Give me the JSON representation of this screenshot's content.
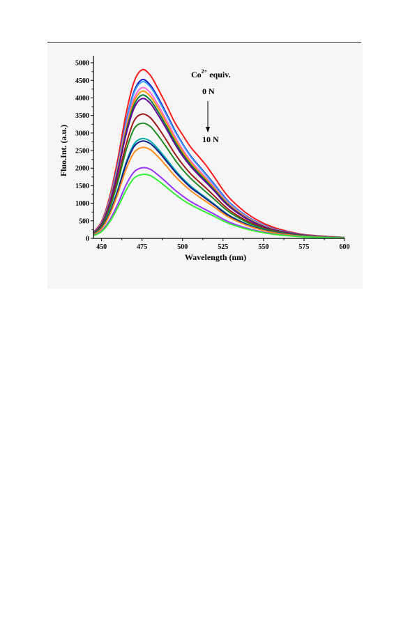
{
  "chart_data": {
    "type": "line",
    "xlabel": "Wavelength (nm)",
    "ylabel": "Fluo.Int. (a.u.)",
    "xlim": [
      445,
      600
    ],
    "ylim": [
      0,
      5200
    ],
    "x_ticks": [
      450,
      475,
      500,
      525,
      550,
      575,
      600
    ],
    "y_ticks": [
      0,
      500,
      1000,
      1500,
      2000,
      2500,
      3000,
      3500,
      4000,
      4500,
      5000
    ],
    "grid": false,
    "annotation": {
      "title_main": "Co",
      "title_sup": "2+",
      "title_rest": " equiv.",
      "start_label": "0 N",
      "end_label": "10 N"
    },
    "x": [
      445,
      450,
      455,
      460,
      465,
      470,
      475,
      480,
      485,
      490,
      495,
      500,
      505,
      510,
      515,
      520,
      525,
      530,
      540,
      550,
      560,
      575,
      600
    ],
    "series": [
      {
        "color": "#ff1a1a",
        "values": [
          180,
          480,
          1180,
          2250,
          3520,
          4450,
          4800,
          4650,
          4250,
          3800,
          3320,
          2950,
          2600,
          2330,
          2050,
          1720,
          1380,
          1100,
          700,
          430,
          260,
          110,
          25
        ]
      },
      {
        "color": "#1414c8",
        "values": [
          170,
          450,
          1110,
          2110,
          3300,
          4180,
          4520,
          4370,
          4000,
          3560,
          3100,
          2700,
          2350,
          2070,
          1800,
          1520,
          1230,
          980,
          620,
          380,
          230,
          100,
          22
        ]
      },
      {
        "color": "#3aa0ff",
        "values": [
          168,
          445,
          1100,
          2090,
          3270,
          4140,
          4460,
          4320,
          3950,
          3520,
          3070,
          2680,
          2330,
          2050,
          1780,
          1500,
          1210,
          970,
          610,
          375,
          225,
          98,
          22
        ]
      },
      {
        "color": "#ff66dd",
        "values": [
          160,
          430,
          1060,
          2010,
          3150,
          3980,
          4290,
          4150,
          3790,
          3370,
          2930,
          2540,
          2210,
          1950,
          1700,
          1440,
          1160,
          930,
          590,
          360,
          215,
          95,
          20
        ]
      },
      {
        "color": "#ff9900",
        "values": [
          155,
          420,
          1040,
          1970,
          3080,
          3890,
          4190,
          4050,
          3700,
          3290,
          2860,
          2480,
          2160,
          1900,
          1660,
          1400,
          1130,
          905,
          575,
          350,
          210,
          92,
          20
        ]
      },
      {
        "color": "#007a3d",
        "values": [
          150,
          410,
          1010,
          1920,
          3000,
          3790,
          4080,
          3940,
          3600,
          3200,
          2780,
          2410,
          2100,
          1850,
          1610,
          1360,
          1100,
          880,
          560,
          340,
          205,
          90,
          19
        ]
      },
      {
        "color": "#660099",
        "values": [
          148,
          400,
          990,
          1880,
          2930,
          3700,
          3980,
          3850,
          3510,
          3120,
          2710,
          2350,
          2050,
          1800,
          1570,
          1330,
          1070,
          860,
          545,
          330,
          200,
          88,
          19
        ]
      },
      {
        "color": "#a01818",
        "values": [
          135,
          365,
          900,
          1700,
          2650,
          3340,
          3540,
          3440,
          3150,
          2800,
          2430,
          2110,
          1840,
          1620,
          1410,
          1190,
          960,
          770,
          490,
          300,
          180,
          80,
          17
        ]
      },
      {
        "color": "#1f8a1f",
        "values": [
          128,
          345,
          850,
          1600,
          2480,
          3110,
          3280,
          3190,
          2920,
          2600,
          2260,
          1960,
          1710,
          1500,
          1300,
          1100,
          890,
          715,
          455,
          280,
          168,
          75,
          16
        ]
      },
      {
        "color": "#00aaaa",
        "values": [
          112,
          300,
          735,
          1380,
          2140,
          2680,
          2840,
          2770,
          2540,
          2260,
          1970,
          1710,
          1490,
          1310,
          1140,
          960,
          780,
          625,
          400,
          245,
          148,
          66,
          14
        ]
      },
      {
        "color": "#0a1a8a",
        "values": [
          110,
          295,
          720,
          1350,
          2090,
          2610,
          2770,
          2700,
          2480,
          2200,
          1920,
          1670,
          1450,
          1280,
          1110,
          940,
          760,
          610,
          390,
          240,
          145,
          64,
          14
        ]
      },
      {
        "color": "#ff8c1a",
        "values": [
          102,
          275,
          670,
          1260,
          1950,
          2440,
          2590,
          2530,
          2320,
          2060,
          1790,
          1560,
          1360,
          1190,
          1035,
          875,
          710,
          570,
          365,
          225,
          135,
          60,
          13
        ]
      },
      {
        "color": "#9933ff",
        "values": [
          80,
          215,
          520,
          975,
          1510,
          1890,
          2010,
          1970,
          1800,
          1600,
          1390,
          1210,
          1050,
          920,
          800,
          680,
          550,
          440,
          285,
          175,
          105,
          47,
          10
        ]
      },
      {
        "color": "#33ee33",
        "values": [
          72,
          195,
          470,
          880,
          1360,
          1710,
          1820,
          1790,
          1640,
          1460,
          1270,
          1100,
          960,
          840,
          730,
          620,
          500,
          400,
          260,
          160,
          96,
          43,
          9
        ]
      }
    ]
  }
}
